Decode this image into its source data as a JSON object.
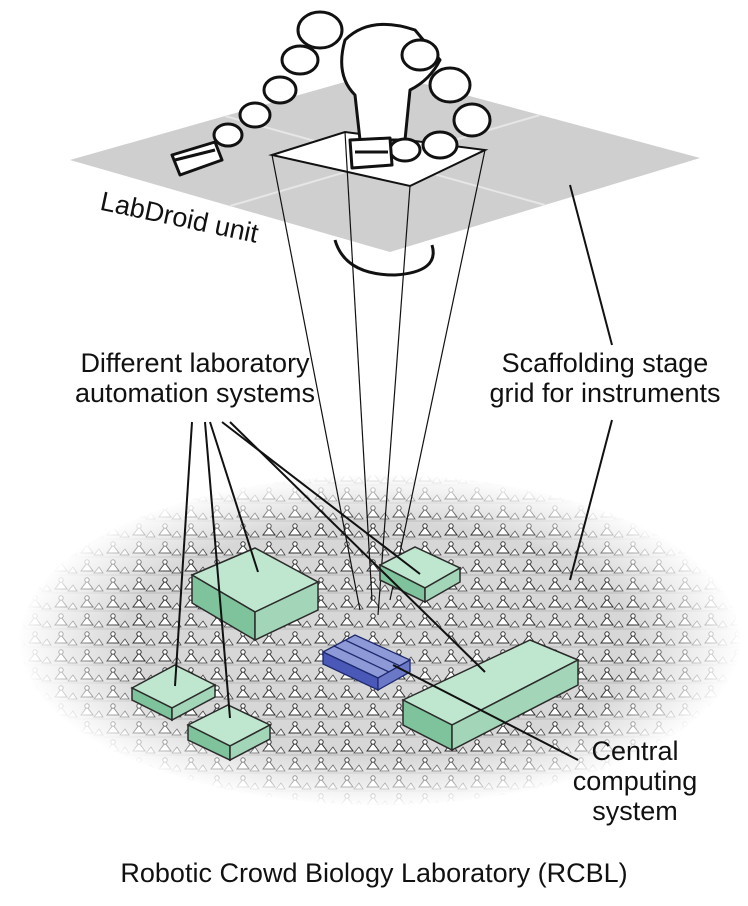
{
  "labels": {
    "labdroid": "LabDroid unit",
    "automation_line1": "Different laboratory",
    "automation_line2": "automation systems",
    "scaffold_line1": "Scaffolding stage",
    "scaffold_line2": "grid for instruments",
    "central_line1": "Central",
    "central_line2": "computing",
    "central_line3": "system",
    "caption": "Robotic Crowd Biology Laboratory (RCBL)"
  },
  "colors": {
    "grid_panel": "#cfcfcf",
    "floor": "#bdbdbd",
    "instrument_top": "#bfe6cf",
    "instrument_side": "#7fc39c",
    "computer_top": "#8e9ad8",
    "computer_side": "#4a59b8",
    "line": "#111111"
  }
}
